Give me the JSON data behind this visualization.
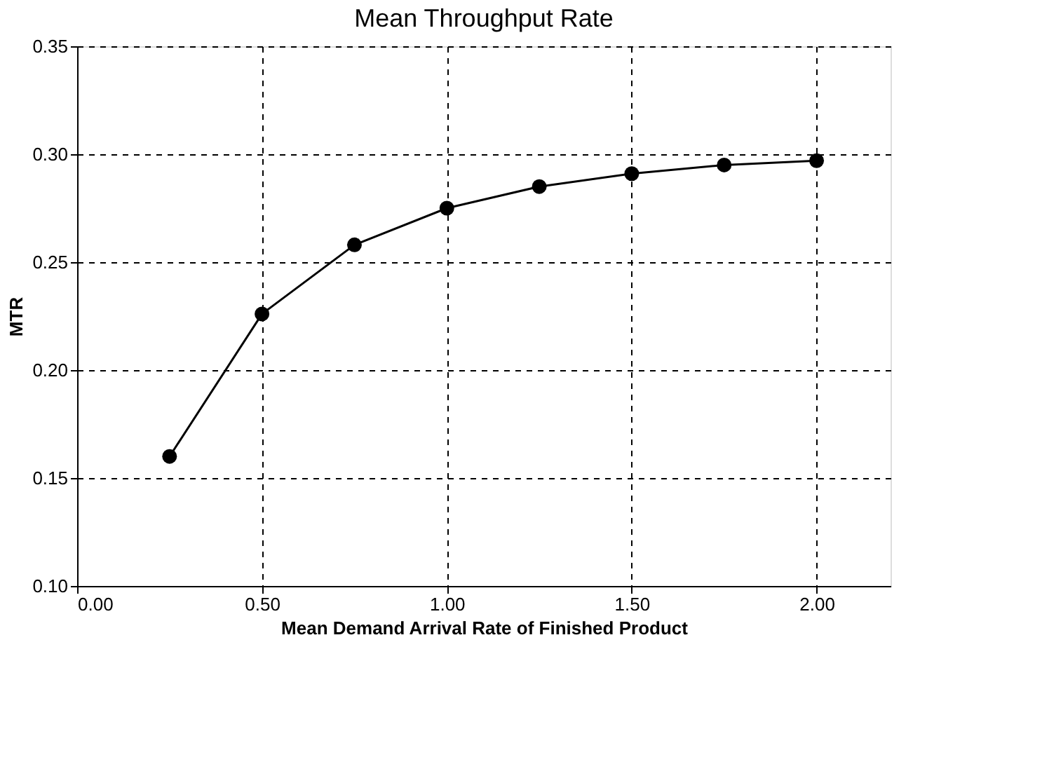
{
  "chart_data": {
    "type": "line",
    "title": "Mean Throughput Rate",
    "xlabel": "Mean Demand Arrival Rate of Finished Product",
    "ylabel": "MTR",
    "x": [
      0.25,
      0.5,
      0.75,
      1.0,
      1.25,
      1.5,
      1.75,
      2.0
    ],
    "series": [
      {
        "color": "#000000",
        "values": [
          0.16,
          0.226,
          0.258,
          0.275,
          0.285,
          0.291,
          0.295,
          0.297
        ]
      }
    ],
    "xlim": [
      0,
      2.2
    ],
    "xticks": [
      {
        "value": 0,
        "label": "0.00"
      },
      {
        "value": 0.5,
        "label": "0.50"
      },
      {
        "value": 1,
        "label": "1.00"
      },
      {
        "value": 1.5,
        "label": "1.50"
      },
      {
        "value": 2,
        "label": "2.00"
      }
    ],
    "ylim": [
      0.1,
      0.35
    ],
    "yticks": [
      {
        "value": 0.1,
        "label": "0.10"
      },
      {
        "value": 0.15,
        "label": "0.15"
      },
      {
        "value": 0.2,
        "label": "0.20"
      },
      {
        "value": 0.25,
        "label": "0.25"
      },
      {
        "value": 0.3,
        "label": "0.30"
      },
      {
        "value": 0.35,
        "label": "0.35"
      }
    ],
    "grid": true,
    "marker": "circle",
    "line_style": "solid",
    "legend": false
  }
}
